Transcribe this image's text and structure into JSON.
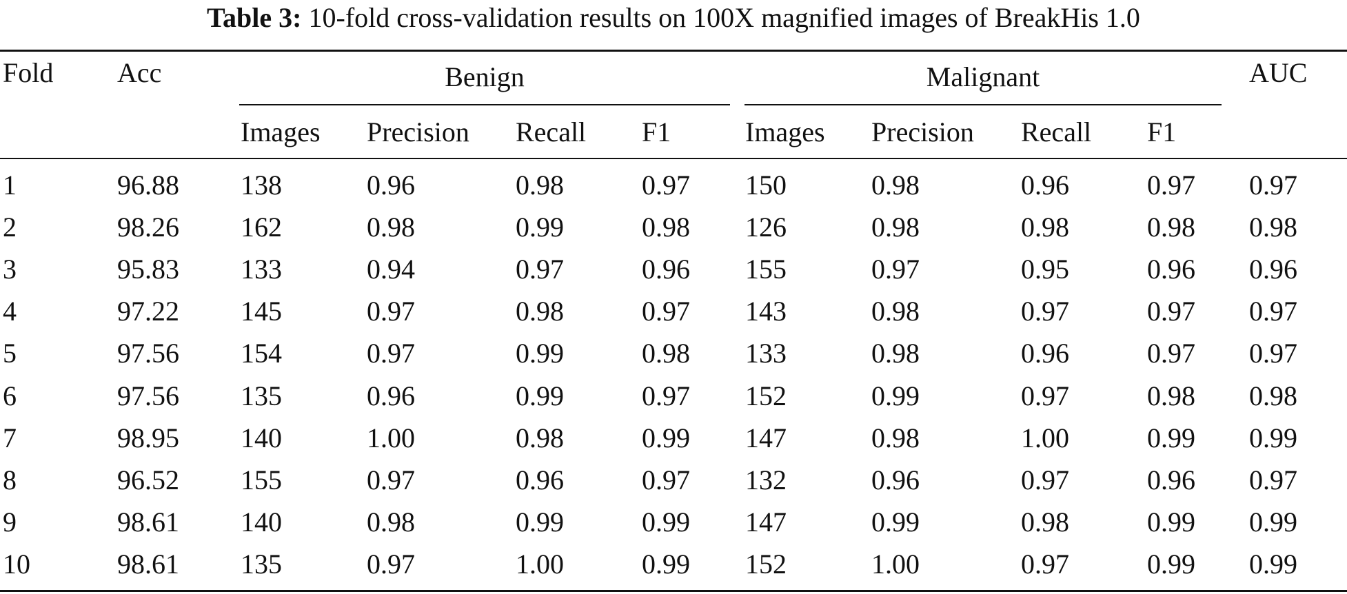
{
  "caption": {
    "label": "Table 3:",
    "text": "10-fold cross-validation results on 100X magnified images of BreakHis 1.0"
  },
  "header": {
    "fold": "Fold",
    "acc": "Acc",
    "benign": "Benign",
    "malignant": "Malignant",
    "auc": "AUC",
    "sub": [
      "Images",
      "Precision",
      "Recall",
      "F1",
      "Images",
      "Precision",
      "Recall",
      "F1"
    ]
  },
  "rows": [
    [
      "1",
      "96.88",
      "138",
      "0.96",
      "0.98",
      "0.97",
      "150",
      "0.98",
      "0.96",
      "0.97",
      "0.97"
    ],
    [
      "2",
      "98.26",
      "162",
      "0.98",
      "0.99",
      "0.98",
      "126",
      "0.98",
      "0.98",
      "0.98",
      "0.98"
    ],
    [
      "3",
      "95.83",
      "133",
      "0.94",
      "0.97",
      "0.96",
      "155",
      "0.97",
      "0.95",
      "0.96",
      "0.96"
    ],
    [
      "4",
      "97.22",
      "145",
      "0.97",
      "0.98",
      "0.97",
      "143",
      "0.98",
      "0.97",
      "0.97",
      "0.97"
    ],
    [
      "5",
      "97.56",
      "154",
      "0.97",
      "0.99",
      "0.98",
      "133",
      "0.98",
      "0.96",
      "0.97",
      "0.97"
    ],
    [
      "6",
      "97.56",
      "135",
      "0.96",
      "0.99",
      "0.97",
      "152",
      "0.99",
      "0.97",
      "0.98",
      "0.98"
    ],
    [
      "7",
      "98.95",
      "140",
      "1.00",
      "0.98",
      "0.99",
      "147",
      "0.98",
      "1.00",
      "0.99",
      "0.99"
    ],
    [
      "8",
      "96.52",
      "155",
      "0.97",
      "0.96",
      "0.97",
      "132",
      "0.96",
      "0.97",
      "0.96",
      "0.97"
    ],
    [
      "9",
      "98.61",
      "140",
      "0.98",
      "0.99",
      "0.99",
      "147",
      "0.99",
      "0.98",
      "0.99",
      "0.99"
    ],
    [
      "10",
      "98.61",
      "135",
      "0.97",
      "1.00",
      "0.99",
      "152",
      "1.00",
      "0.97",
      "0.99",
      "0.99"
    ]
  ]
}
